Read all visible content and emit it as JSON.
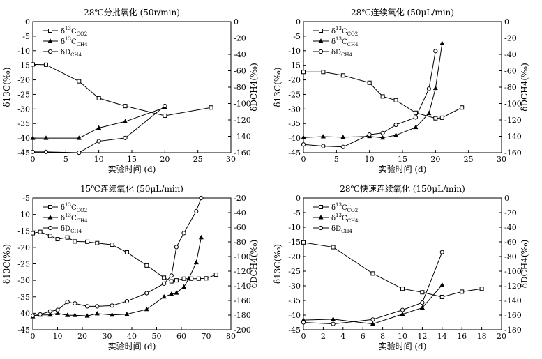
{
  "chart_data": [
    {
      "type": "line",
      "title": "28℃分批氧化 (50r/min)",
      "xlabel": "实验时间 (d)",
      "ylabel": "δ13C(‰)",
      "ylabel_right": "δDCH4(‰)",
      "xlim": [
        0,
        30
      ],
      "xticks": [
        0,
        5,
        10,
        15,
        20,
        25,
        30
      ],
      "ylim": [
        -45,
        0
      ],
      "yticks": [
        0,
        -5,
        -10,
        -15,
        -20,
        -25,
        -30,
        -35,
        -40,
        -45
      ],
      "y2lim": [
        -160,
        0
      ],
      "y2ticks": [
        0,
        -20,
        -40,
        -60,
        -80,
        -100,
        -120,
        -140,
        -160
      ],
      "legend_position": "top-left",
      "series": [
        {
          "name": "δ13C_CO2",
          "label_main": "δ",
          "label_sup": "13",
          "label_core": "C",
          "label_sub": "CO2",
          "marker": "square",
          "axis": "left",
          "x": [
            0,
            2,
            7,
            10,
            14,
            20,
            27
          ],
          "y": [
            -14.7,
            -14.8,
            -20.5,
            -26.3,
            -29.0,
            -32.3,
            -29.5
          ]
        },
        {
          "name": "δ13C_CH4",
          "label_main": "δ",
          "label_sup": "13",
          "label_core": "C",
          "label_sub": "CH4",
          "marker": "triangle",
          "axis": "left",
          "x": [
            0,
            2,
            7,
            10,
            14,
            20
          ],
          "y": [
            -40.0,
            -40.0,
            -40.0,
            -36.5,
            -34.3,
            -29.5
          ]
        },
        {
          "name": "δD_CH4",
          "label_main": "δ",
          "label_sup": "",
          "label_core": "D",
          "label_sub": "CH4",
          "marker": "circle",
          "axis": "right",
          "x": [
            0,
            2,
            7,
            10,
            14,
            20
          ],
          "y": [
            -159,
            -159,
            -163,
            -146,
            -142,
            -103
          ]
        }
      ]
    },
    {
      "type": "line",
      "title": "28℃连续氧化 (50μL/min)",
      "xlabel": "实验时间 (d)",
      "ylabel": "δ13C(‰)",
      "ylabel_right": "δDCH4(‰)",
      "xlim": [
        0,
        30
      ],
      "xticks": [
        0,
        5,
        10,
        15,
        20,
        25,
        30
      ],
      "ylim": [
        -45,
        0
      ],
      "yticks": [
        0,
        -5,
        -10,
        -15,
        -20,
        -25,
        -30,
        -35,
        -40,
        -45
      ],
      "y2lim": [
        -160,
        0
      ],
      "y2ticks": [
        0,
        -20,
        -40,
        -60,
        -80,
        -100,
        -120,
        -140,
        -160
      ],
      "legend_position": "top-left",
      "series": [
        {
          "name": "δ13C_CO2",
          "label_main": "δ",
          "label_sup": "13",
          "label_core": "C",
          "label_sub": "CO2",
          "marker": "square",
          "axis": "left",
          "x": [
            0,
            3,
            6,
            10,
            12,
            14,
            17,
            20,
            21,
            24
          ],
          "y": [
            -17.3,
            -17.3,
            -18.5,
            -21.0,
            -25.7,
            -27.0,
            -31.3,
            -33.2,
            -33.0,
            -29.5
          ]
        },
        {
          "name": "δ13C_CH4",
          "label_main": "δ",
          "label_sup": "13",
          "label_core": "C",
          "label_sub": "CH4",
          "marker": "triangle",
          "axis": "left",
          "x": [
            0,
            3,
            6,
            10,
            12,
            14,
            17,
            19,
            20,
            21
          ],
          "y": [
            -39.8,
            -39.5,
            -39.7,
            -39.4,
            -39.9,
            -39.0,
            -36.3,
            -31.5,
            -22.9,
            -7.5
          ]
        },
        {
          "name": "δD_CH4",
          "label_main": "δ",
          "label_sup": "",
          "label_core": "D",
          "label_sub": "CH4",
          "marker": "circle",
          "axis": "right",
          "x": [
            0,
            3,
            6,
            10,
            12,
            14,
            17,
            19,
            20
          ],
          "y": [
            -150,
            -152,
            -153,
            -138,
            -136,
            -126,
            -117,
            -82,
            -36
          ]
        }
      ]
    },
    {
      "type": "line",
      "title": "15℃连续氧化 (50μL/min)",
      "xlabel": "实验时间 (d)",
      "ylabel": "δ13C(‰)",
      "ylabel_right": "δDCH4(‰)",
      "xlim": [
        0,
        80
      ],
      "xticks": [
        0,
        10,
        20,
        30,
        40,
        50,
        60,
        70,
        80
      ],
      "ylim": [
        -45,
        -5
      ],
      "yticks": [
        -5,
        -10,
        -15,
        -20,
        -25,
        -30,
        -35,
        -40,
        -45
      ],
      "y2lim": [
        -200,
        -20
      ],
      "y2ticks": [
        -20,
        -40,
        -60,
        -80,
        -100,
        -120,
        -140,
        -160,
        -180,
        -200
      ],
      "legend_position": "top-left",
      "series": [
        {
          "name": "δ13C_CO2",
          "label_main": "δ",
          "label_sup": "13",
          "label_core": "C",
          "label_sub": "CO2",
          "marker": "square",
          "axis": "left",
          "x": [
            0,
            3,
            7,
            10,
            14,
            17,
            22,
            26,
            32,
            38,
            46,
            53,
            56,
            58,
            61,
            64,
            67,
            70,
            74
          ],
          "y": [
            -15.7,
            -15.3,
            -16.5,
            -17.5,
            -17.0,
            -18.2,
            -18.3,
            -18.7,
            -19.2,
            -21.5,
            -25.5,
            -29.2,
            -30.3,
            -30.0,
            -29.5,
            -29.5,
            -29.5,
            -29.4,
            -28.3
          ]
        },
        {
          "name": "δ13C_CH4",
          "label_main": "δ",
          "label_sup": "13",
          "label_core": "C",
          "label_sub": "CH4",
          "marker": "triangle",
          "axis": "left",
          "x": [
            0,
            3,
            7,
            10,
            14,
            17,
            22,
            26,
            32,
            38,
            46,
            53,
            56,
            58,
            61,
            63,
            66,
            68
          ],
          "y": [
            -41.0,
            -40.5,
            -40.5,
            -40.0,
            -40.6,
            -40.6,
            -40.8,
            -40.1,
            -40.5,
            -40.3,
            -38.8,
            -35.0,
            -34.2,
            -33.8,
            -32.0,
            -29.5,
            -24.6,
            -17.0
          ]
        },
        {
          "name": "δD_CH4",
          "label_main": "δ",
          "label_sup": "",
          "label_core": "D",
          "label_sub": "CH4",
          "marker": "circle",
          "axis": "right",
          "x": [
            0,
            3,
            7,
            10,
            14,
            17,
            22,
            26,
            32,
            38,
            46,
            53,
            56,
            58,
            61,
            66,
            68
          ],
          "y": [
            -181,
            -179,
            -175,
            -173,
            -162,
            -164,
            -168,
            -168,
            -167,
            -161,
            -150,
            -137,
            -126,
            -87,
            -68,
            -38,
            -20
          ]
        }
      ]
    },
    {
      "type": "line",
      "title": "28℃快速连续氧化 (150μL/min)",
      "xlabel": "实验时间 (d)",
      "ylabel": "δ13C(‰)",
      "ylabel_right": "δDCH4(‰)",
      "xlim": [
        0,
        20
      ],
      "xticks": [
        0,
        2,
        4,
        6,
        8,
        10,
        12,
        14,
        16,
        18,
        20
      ],
      "ylim": [
        -45,
        0
      ],
      "yticks": [
        0,
        -5,
        -10,
        -15,
        -20,
        -25,
        -30,
        -35,
        -40,
        -45
      ],
      "y2lim": [
        -180,
        0
      ],
      "y2ticks": [
        0,
        -20,
        -40,
        -60,
        -80,
        -100,
        -120,
        -140,
        -160,
        -180
      ],
      "legend_position": "top-left",
      "series": [
        {
          "name": "δ13C_CO2",
          "label_main": "δ",
          "label_sup": "13",
          "label_core": "C",
          "label_sub": "CO2",
          "marker": "square",
          "axis": "left",
          "x": [
            0,
            3,
            7,
            10,
            12,
            14,
            16,
            18
          ],
          "y": [
            -15.2,
            -16.8,
            -25.8,
            -31.0,
            -32.2,
            -33.8,
            -32.0,
            -31.0
          ]
        },
        {
          "name": "δ13C_CH4",
          "label_main": "δ",
          "label_sup": "13",
          "label_core": "C",
          "label_sub": "CH4",
          "marker": "triangle",
          "axis": "left",
          "x": [
            0,
            3,
            7,
            10,
            12,
            14
          ],
          "y": [
            -41.7,
            -41.4,
            -43.0,
            -39.7,
            -37.5,
            -29.7
          ]
        },
        {
          "name": "δD_CH4",
          "label_main": "δ",
          "label_sup": "",
          "label_core": "D",
          "label_sub": "CH4",
          "marker": "circle",
          "axis": "right",
          "x": [
            0,
            3,
            7,
            10,
            12,
            14
          ],
          "y": [
            -170,
            -172,
            -166,
            -153,
            -143,
            -74
          ]
        }
      ]
    }
  ]
}
